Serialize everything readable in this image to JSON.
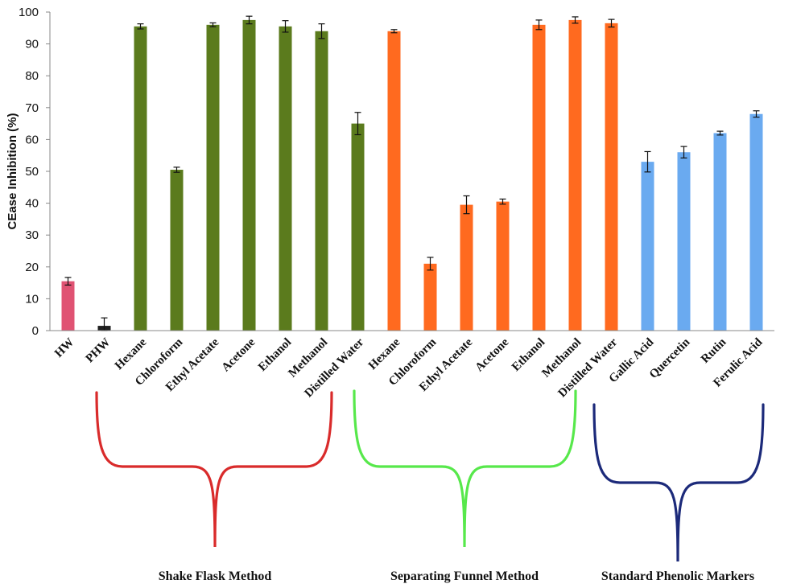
{
  "chart_data": {
    "type": "bar",
    "ylabel": "CEase Inhibition (%)",
    "xlabel": "",
    "ylim": [
      0,
      100
    ],
    "yticks": [
      0,
      10,
      20,
      30,
      40,
      50,
      60,
      70,
      80,
      90,
      100
    ],
    "grid": false,
    "categories": [
      "HW",
      "PHW",
      "Hexane",
      "Chloroform",
      "Ethyl Acetate",
      "Acetone",
      "Ethanol",
      "Methanol",
      "Distilled Water",
      "Hexane",
      "Chloroform",
      "Ethyl Acetate",
      "Acetone",
      "Ethanol",
      "Methanol",
      "Distilled Water",
      "Gallic Acid",
      "Quercetin",
      "Rutin",
      "Ferulic Acid"
    ],
    "values": [
      15.5,
      1.5,
      95.5,
      50.5,
      96,
      97.5,
      95.5,
      94,
      65,
      94,
      21,
      39.5,
      40.5,
      96,
      97.5,
      96.5,
      53,
      56,
      62,
      68
    ],
    "errors": [
      1.2,
      2.5,
      0.8,
      0.8,
      0.6,
      1.2,
      1.8,
      2.3,
      3.5,
      0.5,
      2,
      2.8,
      0.8,
      1.5,
      1,
      1.2,
      3.2,
      1.8,
      0.6,
      1
    ],
    "colors": [
      "#e05373",
      "#1f1f1f",
      "#5b7b1d",
      "#5b7b1d",
      "#5b7b1d",
      "#5b7b1d",
      "#5b7b1d",
      "#5b7b1d",
      "#5b7b1d",
      "#ff6a1f",
      "#ff6a1f",
      "#ff6a1f",
      "#ff6a1f",
      "#ff6a1f",
      "#ff6a1f",
      "#ff6a1f",
      "#6aaaf0",
      "#6aaaf0",
      "#6aaaf0",
      "#6aaaf0"
    ],
    "groups": [
      {
        "name": "Shake Flask Method",
        "color": "#d92b2b",
        "first": 2,
        "last": 8
      },
      {
        "name": "Separating Funnel Method",
        "color": "#57e84b",
        "first": 9,
        "last": 15
      },
      {
        "name": "Standard Phenolic Markers",
        "color": "#1c2a7a",
        "first": 16,
        "last": 19
      }
    ]
  }
}
